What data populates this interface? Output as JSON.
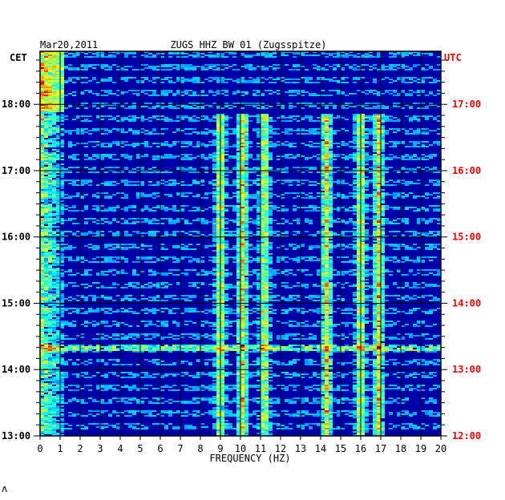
{
  "chart_data": {
    "type": "heatmap",
    "title_left": "Mar20,2011",
    "title_center": "ZUGS HHZ BW 01 (Zugsspitze)",
    "left_timezone": "CET",
    "right_timezone": "UTC",
    "xlabel": "FREQUENCY (HZ)",
    "xlim": [
      0,
      20
    ],
    "x_ticks": [
      "0",
      "1",
      "2",
      "3",
      "4",
      "5",
      "6",
      "7",
      "8",
      "9",
      "10",
      "11",
      "12",
      "13",
      "14",
      "15",
      "16",
      "17",
      "18",
      "19",
      "20"
    ],
    "left_ticks": [
      "18:00",
      "17:00",
      "16:00",
      "15:00",
      "14:00",
      "13:00"
    ],
    "right_ticks": [
      "17:00",
      "16:00",
      "15:00",
      "14:00",
      "13:00",
      "12:00"
    ],
    "time_range_cet": [
      "13:00",
      "18:48"
    ],
    "grid": true,
    "colormap": "jet",
    "colors": {
      "background": "#0000a8",
      "grid": "#000000",
      "utc_label": "#ff0000",
      "cet_label": "#000000"
    },
    "highlight_frequencies_hz": [
      0.2,
      9.0,
      10.1,
      11.2,
      14.3,
      16.0,
      16.9
    ],
    "broadband_event_cet": "14:20"
  },
  "footer_mark": "ʌ"
}
